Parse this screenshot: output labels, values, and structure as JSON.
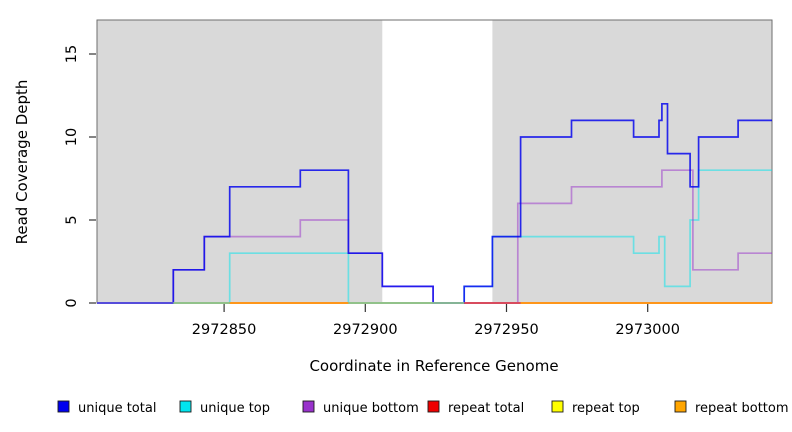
{
  "figure": {
    "xlabel": "Coordinate in Reference Genome",
    "ylabel": "Read Coverage Depth",
    "background": "#ffffff",
    "plot_shade_color": "#d9d9d9",
    "border_color": "#6e6e6e"
  },
  "chart_data": {
    "type": "line",
    "subtype": "step-coverage",
    "title": "",
    "xlabel": "Coordinate in Reference Genome",
    "ylabel": "Read Coverage Depth",
    "xlim": [
      2972805,
      2973044
    ],
    "ylim": [
      0,
      17
    ],
    "xticks": [
      {
        "value": 2972850,
        "label": "2972850"
      },
      {
        "value": 2972900,
        "label": "2972900"
      },
      {
        "value": 2972950,
        "label": "2972950"
      },
      {
        "value": 2973000,
        "label": "2973000"
      }
    ],
    "yticks": [
      {
        "value": 0,
        "label": "0"
      },
      {
        "value": 5,
        "label": "5"
      },
      {
        "value": 10,
        "label": "10"
      },
      {
        "value": 15,
        "label": "15"
      }
    ],
    "grid": false,
    "legend_position": "bottom",
    "shaded_regions": [
      {
        "from": 2972805,
        "to": 2972906,
        "color": "#d9d9d9"
      },
      {
        "from": 2972945,
        "to": 2973044,
        "color": "#d9d9d9"
      }
    ],
    "series": [
      {
        "name": "unique total",
        "color": "#0000ee",
        "opacity": 0.82,
        "zorder": 6,
        "points": [
          [
            2972805,
            0
          ],
          [
            2972832,
            2
          ],
          [
            2972843,
            4
          ],
          [
            2972852,
            7
          ],
          [
            2972877,
            8
          ],
          [
            2972894,
            3
          ],
          [
            2972906,
            1
          ],
          [
            2972924,
            0
          ],
          [
            2972935,
            1
          ],
          [
            2972945,
            4
          ],
          [
            2972955,
            10
          ],
          [
            2972973,
            11
          ],
          [
            2972995,
            10
          ],
          [
            2973004,
            11
          ],
          [
            2973005,
            12
          ],
          [
            2973007,
            9
          ],
          [
            2973015,
            7
          ],
          [
            2973018,
            10
          ],
          [
            2973032,
            11
          ],
          [
            2973044,
            11
          ]
        ]
      },
      {
        "name": "unique top",
        "color": "#00e5ee",
        "opacity": 0.5,
        "zorder": 4,
        "points": [
          [
            2972805,
            0
          ],
          [
            2972852,
            3
          ],
          [
            2972894,
            0
          ],
          [
            2972935,
            1
          ],
          [
            2972945,
            4
          ],
          [
            2972995,
            3
          ],
          [
            2973004,
            4
          ],
          [
            2973006,
            1
          ],
          [
            2973015,
            5
          ],
          [
            2973018,
            8
          ],
          [
            2973044,
            8
          ]
        ]
      },
      {
        "name": "unique bottom",
        "color": "#9932cc",
        "opacity": 0.5,
        "zorder": 5,
        "points": [
          [
            2972805,
            0
          ],
          [
            2972832,
            2
          ],
          [
            2972843,
            4
          ],
          [
            2972877,
            5
          ],
          [
            2972894,
            3
          ],
          [
            2972906,
            1
          ],
          [
            2972924,
            0
          ],
          [
            2972954,
            6
          ],
          [
            2972973,
            7
          ],
          [
            2973005,
            8
          ],
          [
            2973016,
            2
          ],
          [
            2973032,
            3
          ],
          [
            2973044,
            3
          ]
        ]
      },
      {
        "name": "repeat total",
        "color": "#ee0000",
        "opacity": 0.6,
        "zorder": 3,
        "points": [
          [
            2972805,
            0
          ],
          [
            2973044,
            0
          ]
        ]
      },
      {
        "name": "repeat top",
        "color": "#ffff00",
        "opacity": 0.6,
        "zorder": 2,
        "points": [
          [
            2972805,
            0
          ],
          [
            2973044,
            0
          ]
        ]
      },
      {
        "name": "repeat bottom",
        "color": "#ffa500",
        "opacity": 0.9,
        "zorder": 1,
        "points": [
          [
            2972805,
            0
          ],
          [
            2973044,
            0
          ]
        ]
      }
    ],
    "baseline_overlay": [
      {
        "from": 2972805,
        "to": 2972832,
        "color": "#5b51dc"
      },
      {
        "from": 2972832,
        "to": 2972852,
        "color": "#90c78f"
      },
      {
        "from": 2972852,
        "to": 2972894,
        "color": "#ff9a1b"
      },
      {
        "from": 2972894,
        "to": 2972935,
        "color": "#90c78f"
      },
      {
        "from": 2972935,
        "to": 2972955,
        "color": "#d8495f"
      },
      {
        "from": 2972955,
        "to": 2973044,
        "color": "#ff9a1b"
      }
    ],
    "legend": [
      {
        "label": "unique total",
        "color": "#0000ee"
      },
      {
        "label": "unique top",
        "color": "#00e5ee"
      },
      {
        "label": "unique bottom",
        "color": "#9932cc"
      },
      {
        "label": "repeat total",
        "color": "#ee0000"
      },
      {
        "label": "repeat top",
        "color": "#ffff00"
      },
      {
        "label": "repeat bottom",
        "color": "#ffa500"
      }
    ]
  }
}
